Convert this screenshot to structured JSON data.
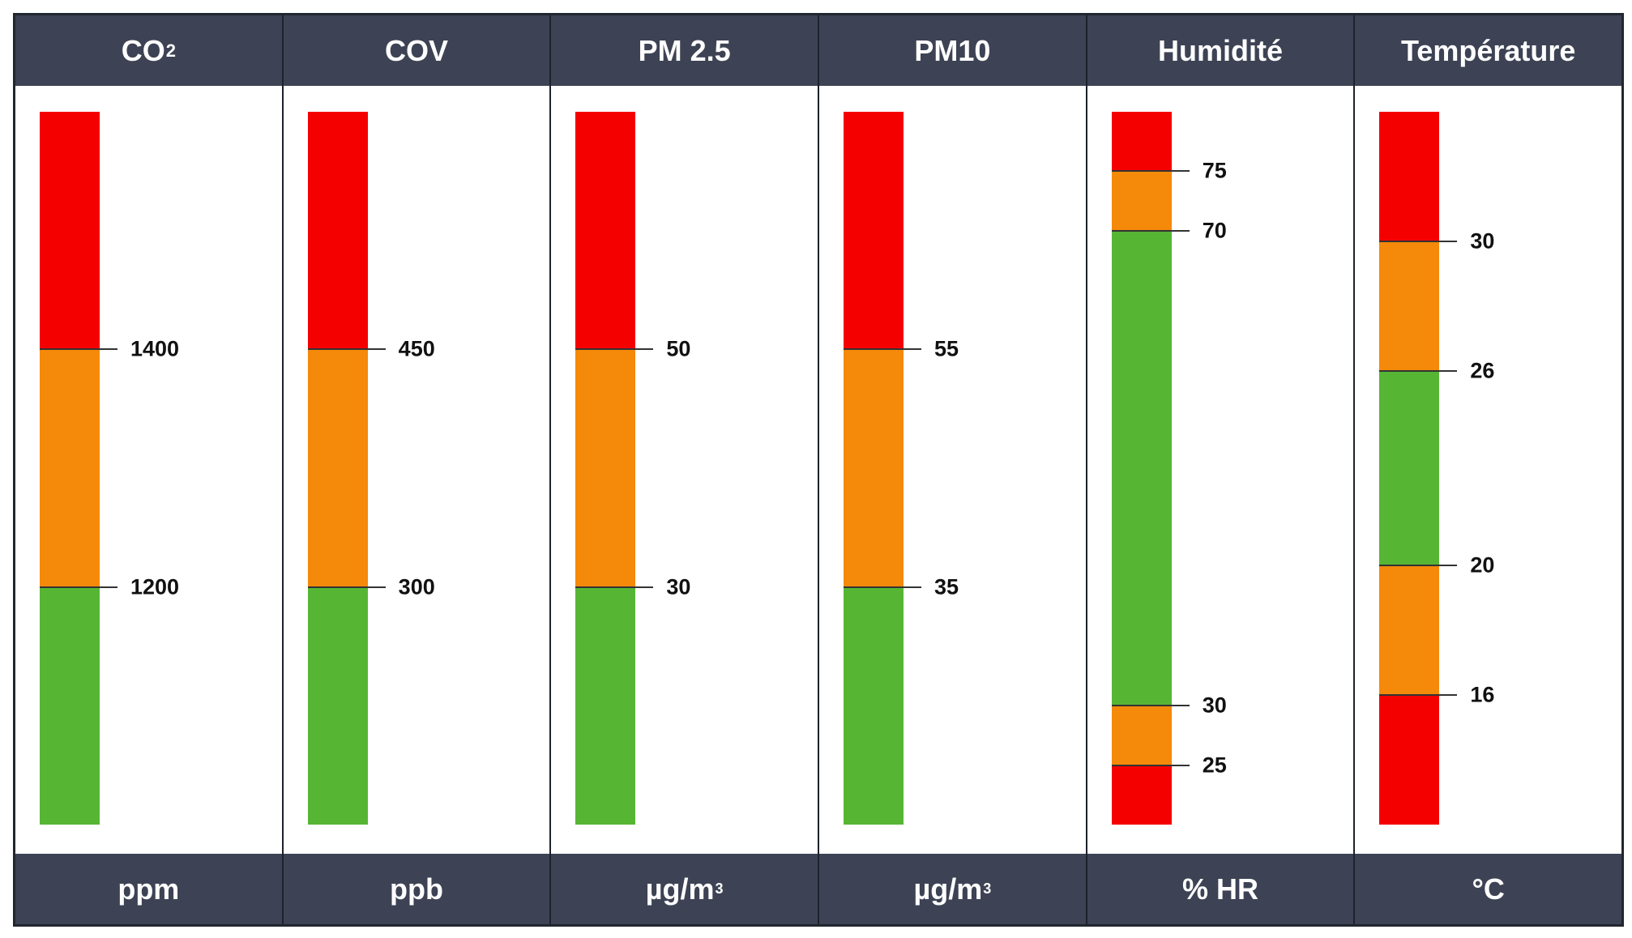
{
  "chart_data": {
    "type": "table",
    "title": "",
    "colors": {
      "red": "#f40000",
      "orange": "#f5890a",
      "green": "#56b634",
      "header_bg": "#3d4354"
    },
    "columns": [
      {
        "name_main": "CO",
        "name_sub": "2",
        "unit_main": "ppm",
        "unit_sup": "",
        "range": [
          1000,
          1600
        ],
        "segments": [
          {
            "from": 1400,
            "to": 1600,
            "level": "red"
          },
          {
            "from": 1200,
            "to": 1400,
            "level": "orange"
          },
          {
            "from": 1000,
            "to": 1200,
            "level": "green"
          }
        ],
        "ticks": [
          {
            "value": 1400,
            "label": "1400"
          },
          {
            "value": 1200,
            "label": "1200"
          }
        ]
      },
      {
        "name_main": "COV",
        "name_sub": "",
        "unit_main": "ppb",
        "unit_sup": "",
        "range": [
          150,
          600
        ],
        "segments": [
          {
            "from": 450,
            "to": 600,
            "level": "red"
          },
          {
            "from": 300,
            "to": 450,
            "level": "orange"
          },
          {
            "from": 150,
            "to": 300,
            "level": "green"
          }
        ],
        "ticks": [
          {
            "value": 450,
            "label": "450"
          },
          {
            "value": 300,
            "label": "300"
          }
        ]
      },
      {
        "name_main": "PM 2.5",
        "name_sub": "",
        "unit_main": "µg/m",
        "unit_sup": "3",
        "range": [
          10,
          70
        ],
        "segments": [
          {
            "from": 50,
            "to": 70,
            "level": "red"
          },
          {
            "from": 30,
            "to": 50,
            "level": "orange"
          },
          {
            "from": 10,
            "to": 30,
            "level": "green"
          }
        ],
        "ticks": [
          {
            "value": 50,
            "label": "50"
          },
          {
            "value": 30,
            "label": "30"
          }
        ]
      },
      {
        "name_main": "PM10",
        "name_sub": "",
        "unit_main": "µg/m",
        "unit_sup": "3",
        "range": [
          15,
          75
        ],
        "segments": [
          {
            "from": 55,
            "to": 75,
            "level": "red"
          },
          {
            "from": 35,
            "to": 55,
            "level": "orange"
          },
          {
            "from": 15,
            "to": 35,
            "level": "green"
          }
        ],
        "ticks": [
          {
            "value": 55,
            "label": "55"
          },
          {
            "value": 35,
            "label": "35"
          }
        ]
      },
      {
        "name_main": "Humidité",
        "name_sub": "",
        "unit_main": "% HR",
        "unit_sup": "",
        "range": [
          20,
          80
        ],
        "segments": [
          {
            "from": 75,
            "to": 80,
            "level": "red"
          },
          {
            "from": 70,
            "to": 75,
            "level": "orange"
          },
          {
            "from": 30,
            "to": 70,
            "level": "green"
          },
          {
            "from": 25,
            "to": 30,
            "level": "orange"
          },
          {
            "from": 20,
            "to": 25,
            "level": "red"
          }
        ],
        "ticks": [
          {
            "value": 75,
            "label": "75"
          },
          {
            "value": 70,
            "label": "70"
          },
          {
            "value": 30,
            "label": "30"
          },
          {
            "value": 25,
            "label": "25"
          }
        ]
      },
      {
        "name_main": "Température",
        "name_sub": "",
        "unit_main": "°C",
        "unit_sup": "",
        "range": [
          12,
          34
        ],
        "segments": [
          {
            "from": 30,
            "to": 34,
            "level": "red"
          },
          {
            "from": 26,
            "to": 30,
            "level": "orange"
          },
          {
            "from": 20,
            "to": 26,
            "level": "green"
          },
          {
            "from": 16,
            "to": 20,
            "level": "orange"
          },
          {
            "from": 12,
            "to": 16,
            "level": "red"
          }
        ],
        "ticks": [
          {
            "value": 30,
            "label": "30"
          },
          {
            "value": 26,
            "label": "26"
          },
          {
            "value": 20,
            "label": "20"
          },
          {
            "value": 16,
            "label": "16"
          }
        ]
      }
    ]
  }
}
